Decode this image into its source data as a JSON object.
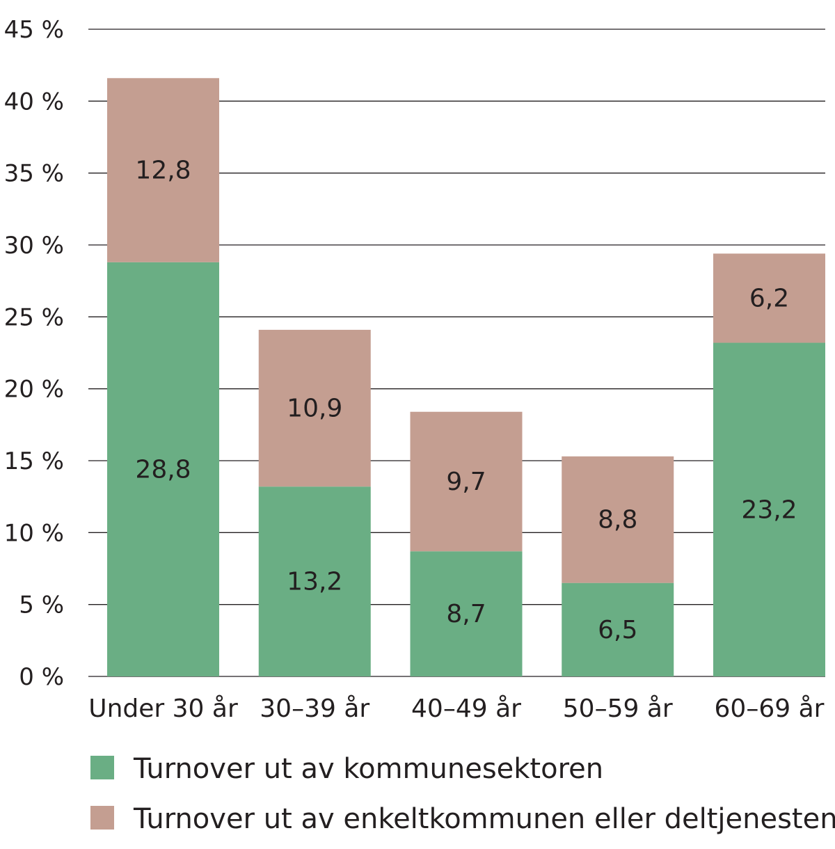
{
  "chart_data": {
    "type": "bar",
    "stacked": true,
    "categories": [
      "Under 30 år",
      "30–39 år",
      "40–49 år",
      "50–59 år",
      "60–69 år"
    ],
    "series": [
      {
        "name": "Turnover ut av kommunesektoren",
        "values": [
          28.8,
          13.2,
          8.7,
          6.5,
          23.2
        ],
        "labels": [
          "28,8",
          "13,2",
          "8,7",
          "6,5",
          "23,2"
        ],
        "color": "#6aae84"
      },
      {
        "name": "Turnover ut av enkeltkommunen eller deltjenesten",
        "values": [
          12.8,
          10.9,
          9.7,
          8.8,
          6.2
        ],
        "labels": [
          "12,8",
          "10,9",
          "9,7",
          "8,8",
          "6,2"
        ],
        "color": "#c49e91"
      }
    ],
    "ylim": [
      0,
      45
    ],
    "yticks": [
      0,
      5,
      10,
      15,
      20,
      25,
      30,
      35,
      40,
      45
    ],
    "ytick_labels": [
      "0 %",
      "5 %",
      "10 %",
      "15 %",
      "20 %",
      "25 %",
      "30 %",
      "35 %",
      "40 %",
      "45 %"
    ],
    "grid": true,
    "legend_position": "bottom-left",
    "gridline_color": "#231f20"
  }
}
